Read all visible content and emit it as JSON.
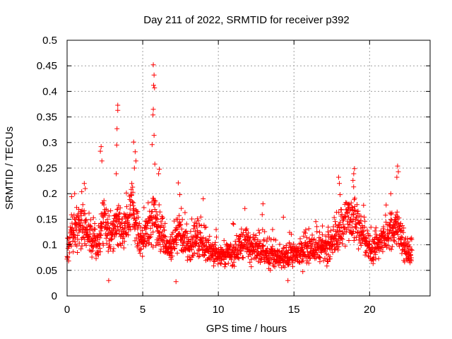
{
  "chart_data": {
    "type": "scatter",
    "title": "Day 211 of 2022, SRMTID for receiver p392",
    "xlabel": "GPS time / hours",
    "ylabel": "SRMTID / TECUs",
    "xlim": [
      0,
      24
    ],
    "ylim": [
      0,
      0.5
    ],
    "x_ticks": [
      0,
      5,
      10,
      15,
      20
    ],
    "x_tick_labels": [
      "0",
      "5",
      "10",
      "15",
      "20"
    ],
    "y_ticks": [
      0,
      0.05,
      0.1,
      0.15,
      0.2,
      0.25,
      0.3,
      0.35,
      0.4,
      0.45,
      0.5
    ],
    "y_tick_labels": [
      "0",
      "0.05",
      "0.1",
      "0.15",
      "0.2",
      "0.25",
      "0.3",
      "0.35",
      "0.4",
      "0.45",
      "0.5"
    ],
    "grid": true,
    "marker": "+",
    "color": "#ff0000",
    "data_extent_hours": [
      0,
      22.8
    ],
    "baseline_envelope": [
      [
        0.0,
        0.08
      ],
      [
        0.3,
        0.12
      ],
      [
        0.8,
        0.14
      ],
      [
        1.2,
        0.13
      ],
      [
        1.6,
        0.11
      ],
      [
        2.0,
        0.1
      ],
      [
        2.4,
        0.15
      ],
      [
        2.8,
        0.11
      ],
      [
        3.3,
        0.14
      ],
      [
        3.8,
        0.13
      ],
      [
        4.3,
        0.18
      ],
      [
        4.8,
        0.1
      ],
      [
        5.2,
        0.12
      ],
      [
        5.7,
        0.16
      ],
      [
        6.2,
        0.12
      ],
      [
        6.8,
        0.09
      ],
      [
        7.4,
        0.12
      ],
      [
        8.0,
        0.09
      ],
      [
        8.6,
        0.11
      ],
      [
        9.2,
        0.09
      ],
      [
        10.0,
        0.08
      ],
      [
        10.8,
        0.08
      ],
      [
        11.6,
        0.1
      ],
      [
        12.4,
        0.1
      ],
      [
        13.2,
        0.08
      ],
      [
        14.0,
        0.07
      ],
      [
        15.0,
        0.08
      ],
      [
        16.0,
        0.09
      ],
      [
        17.0,
        0.09
      ],
      [
        17.6,
        0.1
      ],
      [
        18.0,
        0.12
      ],
      [
        18.5,
        0.15
      ],
      [
        19.0,
        0.16
      ],
      [
        19.5,
        0.12
      ],
      [
        20.0,
        0.09
      ],
      [
        20.6,
        0.1
      ],
      [
        21.2,
        0.12
      ],
      [
        21.8,
        0.14
      ],
      [
        22.3,
        0.09
      ],
      [
        22.8,
        0.08
      ]
    ],
    "spikes": [
      {
        "x": 3.35,
        "y": 0.373
      },
      {
        "x": 3.35,
        "y": 0.363
      },
      {
        "x": 3.3,
        "y": 0.327
      },
      {
        "x": 3.28,
        "y": 0.295
      },
      {
        "x": 3.25,
        "y": 0.239
      },
      {
        "x": 2.25,
        "y": 0.292
      },
      {
        "x": 2.2,
        "y": 0.283
      },
      {
        "x": 2.3,
        "y": 0.264
      },
      {
        "x": 4.4,
        "y": 0.301
      },
      {
        "x": 4.5,
        "y": 0.282
      },
      {
        "x": 4.55,
        "y": 0.264
      },
      {
        "x": 4.45,
        "y": 0.25
      },
      {
        "x": 5.7,
        "y": 0.452
      },
      {
        "x": 5.75,
        "y": 0.432
      },
      {
        "x": 5.72,
        "y": 0.412
      },
      {
        "x": 5.78,
        "y": 0.407
      },
      {
        "x": 5.7,
        "y": 0.365
      },
      {
        "x": 5.68,
        "y": 0.354
      },
      {
        "x": 5.75,
        "y": 0.314
      },
      {
        "x": 5.62,
        "y": 0.296
      },
      {
        "x": 5.8,
        "y": 0.258
      },
      {
        "x": 6.1,
        "y": 0.248
      },
      {
        "x": 6.05,
        "y": 0.239
      },
      {
        "x": 7.35,
        "y": 0.221
      },
      {
        "x": 7.45,
        "y": 0.198
      },
      {
        "x": 9.0,
        "y": 0.19
      },
      {
        "x": 12.95,
        "y": 0.18
      },
      {
        "x": 12.9,
        "y": 0.159
      },
      {
        "x": 14.3,
        "y": 0.154
      },
      {
        "x": 17.95,
        "y": 0.232
      },
      {
        "x": 18.0,
        "y": 0.22
      },
      {
        "x": 18.05,
        "y": 0.198
      },
      {
        "x": 19.0,
        "y": 0.249
      },
      {
        "x": 18.95,
        "y": 0.239
      },
      {
        "x": 18.9,
        "y": 0.226
      },
      {
        "x": 21.85,
        "y": 0.254
      },
      {
        "x": 21.9,
        "y": 0.243
      },
      {
        "x": 21.8,
        "y": 0.232
      },
      {
        "x": 21.4,
        "y": 0.2
      },
      {
        "x": 0.5,
        "y": 0.2
      },
      {
        "x": 1.2,
        "y": 0.21
      },
      {
        "x": 0.3,
        "y": 0.194
      },
      {
        "x": 2.75,
        "y": 0.03
      },
      {
        "x": 7.2,
        "y": 0.028
      },
      {
        "x": 14.6,
        "y": 0.03
      }
    ]
  }
}
